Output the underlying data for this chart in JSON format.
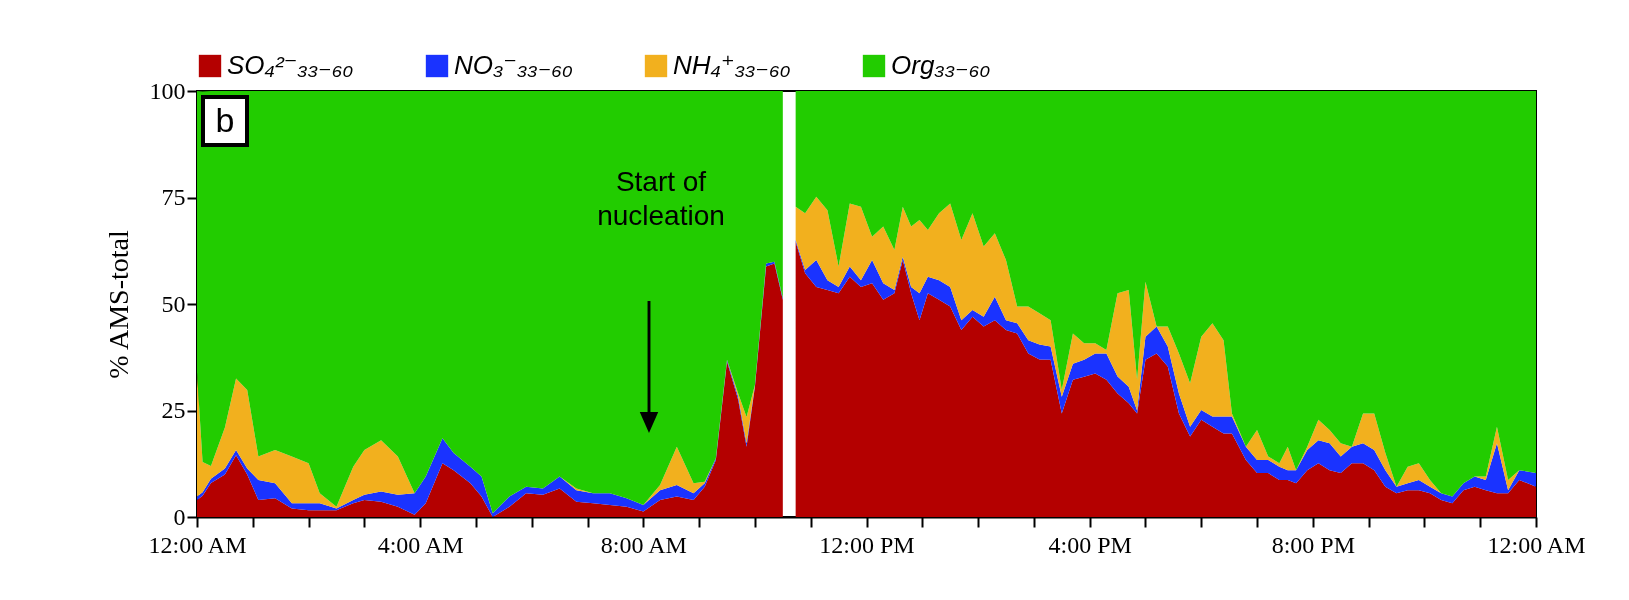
{
  "chart_data": {
    "type": "area",
    "stacked": true,
    "ylabel": "% AMS-total",
    "legend": "top",
    "grid": false,
    "annotations": [
      "b",
      "Start of nucleation"
    ],
    "ylim": [
      0,
      100
    ],
    "yticks": [
      0,
      25,
      50,
      75,
      100
    ],
    "xlim": [
      0,
      24
    ],
    "xticks": [
      {
        "value": 0,
        "label": "12:00 AM"
      },
      {
        "value": 1,
        "label": null
      },
      {
        "value": 2,
        "label": null
      },
      {
        "value": 3,
        "label": null
      },
      {
        "value": 4,
        "label": "4:00 AM"
      },
      {
        "value": 5,
        "label": null
      },
      {
        "value": 6,
        "label": null
      },
      {
        "value": 7,
        "label": null
      },
      {
        "value": 8,
        "label": "8:00 AM"
      },
      {
        "value": 9,
        "label": null
      },
      {
        "value": 10,
        "label": null
      },
      {
        "value": 11,
        "label": null
      },
      {
        "value": 12,
        "label": "12:00 PM"
      },
      {
        "value": 13,
        "label": null
      },
      {
        "value": 14,
        "label": null
      },
      {
        "value": 15,
        "label": null
      },
      {
        "value": 16,
        "label": "4:00 PM"
      },
      {
        "value": 17,
        "label": null
      },
      {
        "value": 18,
        "label": null
      },
      {
        "value": 19,
        "label": null
      },
      {
        "value": 20,
        "label": "8:00 PM"
      },
      {
        "value": 21,
        "label": null
      },
      {
        "value": 22,
        "label": null
      },
      {
        "value": 23,
        "label": null
      },
      {
        "value": 24,
        "label": "12:00 AM"
      }
    ],
    "x": [
      0,
      0.1,
      0.25,
      0.5,
      0.7,
      0.9,
      1.1,
      1.4,
      1.7,
      2.0,
      2.2,
      2.5,
      2.8,
      3.0,
      3.3,
      3.6,
      3.9,
      4.1,
      4.4,
      4.6,
      4.9,
      5.1,
      5.3,
      5.6,
      5.9,
      6.2,
      6.5,
      6.8,
      7.1,
      7.4,
      7.7,
      8.0,
      8.3,
      8.6,
      8.9,
      9.1,
      9.3,
      9.5,
      9.7,
      9.85,
      10.0,
      10.2,
      10.35,
      10.5,
      10.6,
      10.73,
      10.9,
      11.1,
      11.3,
      11.5,
      11.7,
      11.9,
      12.1,
      12.3,
      12.5,
      12.65,
      12.8,
      12.95,
      13.1,
      13.3,
      13.5,
      13.7,
      13.9,
      14.1,
      14.3,
      14.5,
      14.7,
      14.9,
      15.1,
      15.3,
      15.5,
      15.7,
      15.9,
      16.1,
      16.3,
      16.5,
      16.7,
      16.85,
      17.0,
      17.2,
      17.4,
      17.6,
      17.8,
      18.0,
      18.2,
      18.4,
      18.55,
      18.8,
      19.0,
      19.2,
      19.4,
      19.55,
      19.7,
      19.9,
      20.1,
      20.3,
      20.5,
      20.7,
      20.9,
      21.1,
      21.3,
      21.5,
      21.7,
      21.9,
      22.1,
      22.3,
      22.5,
      22.7,
      22.9,
      23.1,
      23.3,
      23.5,
      23.7,
      24
    ],
    "series": [
      {
        "name": "SO₄²⁻₃₃₋₆₀",
        "color": "#b40000",
        "values": [
          4,
          5,
          8,
          10,
          14.5,
          10,
          4,
          4.4,
          2,
          1.6,
          1.6,
          1.6,
          3.2,
          4,
          3.6,
          2.4,
          0.5,
          3.2,
          12.6,
          11,
          7.9,
          4.8,
          0,
          2.4,
          5.6,
          5.2,
          6.7,
          3.6,
          3.2,
          2.8,
          2.4,
          1.3,
          4,
          4.8,
          4,
          7.1,
          13.4,
          36.5,
          27.5,
          16.5,
          30.6,
          58.8,
          59.5,
          51,
          null,
          64.6,
          57.2,
          54,
          53.3,
          52.5,
          56.4,
          54,
          54.9,
          51,
          52.5,
          60.3,
          52.5,
          46.2,
          52.5,
          51,
          49.4,
          43.9,
          47,
          44.7,
          46.2,
          43.9,
          43.1,
          38.4,
          37,
          36.9,
          24.3,
          32.2,
          32.9,
          33.7,
          32.2,
          29,
          26.7,
          24.3,
          36.9,
          38.4,
          35.3,
          24.3,
          18.9,
          22.8,
          21.2,
          19.6,
          19.6,
          13.4,
          10.3,
          10.3,
          8.7,
          8.7,
          7.9,
          11,
          12.6,
          11,
          10.3,
          12.6,
          12.6,
          11,
          7.1,
          5.6,
          6.3,
          6.3,
          5.6,
          4,
          3.2,
          6.3,
          7.1,
          6.3,
          5.6,
          5.6,
          8.7,
          7.1
        ]
      },
      {
        "name": "NO₃⁻₃₃₋₆₀",
        "color": "#1a33ff",
        "values": [
          0.8,
          0.8,
          1,
          1.4,
          1.2,
          1.4,
          4.7,
          3.5,
          1.2,
          1.6,
          1.6,
          0.4,
          0.8,
          1.2,
          2.4,
          2.8,
          5.1,
          6.3,
          5.9,
          4,
          3.9,
          4.7,
          0.9,
          2.4,
          1.5,
          1.5,
          2.8,
          2.7,
          2.4,
          2.8,
          2,
          1.5,
          2.3,
          2.7,
          1.6,
          0.8,
          0.4,
          0.4,
          0.7,
          0.8,
          0.4,
          0.7,
          0.4,
          0.4,
          null,
          0.4,
          0.8,
          6.3,
          2.3,
          1.5,
          2.4,
          1.6,
          5.4,
          3.9,
          0.8,
          0.8,
          1.5,
          6.3,
          3.9,
          4.6,
          4.6,
          2.3,
          1.6,
          2.3,
          5.5,
          2.3,
          2.4,
          3.1,
          3.5,
          3.1,
          3.9,
          3.8,
          4,
          4.7,
          6.2,
          4,
          3.9,
          0.7,
          5.4,
          6.3,
          4.7,
          4.7,
          2.3,
          2.3,
          2.4,
          4,
          4,
          3.1,
          3.1,
          3.1,
          3.1,
          2.3,
          3.1,
          4.7,
          5.4,
          6.3,
          3.9,
          3.9,
          4.7,
          4.7,
          3.9,
          1.5,
          1.6,
          2.4,
          1.5,
          1.6,
          1.6,
          1.6,
          2.4,
          2.4,
          11.7,
          0.7,
          2.3,
          3.2
        ]
      },
      {
        "name": "NH₄⁺₃₃₋₆₀",
        "color": "#f2b01e",
        "values": [
          29.2,
          7.1,
          3,
          9.6,
          16.8,
          18.4,
          5.5,
          7.8,
          11,
          9.4,
          2.4,
          0.4,
          7.8,
          10.5,
          12,
          9,
          0,
          0,
          0,
          0,
          0,
          0,
          0,
          0,
          0,
          0,
          0,
          0.4,
          0,
          0,
          0,
          0,
          1.2,
          9,
          2.3,
          0.4,
          0,
          0,
          0.8,
          6.2,
          0,
          0,
          0,
          0,
          null,
          7.8,
          13.3,
          14.9,
          16.4,
          4.8,
          14.8,
          17.2,
          5.5,
          13.3,
          9.4,
          11.7,
          14.2,
          17.2,
          11,
          15.7,
          19.6,
          18.8,
          22.7,
          16.5,
          14.9,
          14.1,
          3.9,
          7.9,
          7.3,
          6.2,
          1.6,
          7.1,
          3.9,
          2.4,
          0.8,
          19.5,
          22.7,
          7.2,
          12.9,
          0,
          4.7,
          9.4,
          10.2,
          17.2,
          21.9,
          17.9,
          0.7,
          0,
          7,
          0.8,
          0.8,
          5.5,
          0,
          0.8,
          4.8,
          3.1,
          3.1,
          0,
          7,
          8.6,
          4,
          0,
          3.9,
          3.9,
          1.6,
          0,
          0,
          0,
          0,
          0.8,
          3.9,
          2.4,
          0,
          0
        ]
      },
      {
        "name": "Org₃₃₋₆₀",
        "color": "#22cc00",
        "values": [
          66,
          87,
          88,
          79,
          67.5,
          70.2,
          85.8,
          84.3,
          85.8,
          87.4,
          94.4,
          97.6,
          88.2,
          84.3,
          82,
          85.8,
          94.4,
          90.5,
          81.5,
          85,
          88.2,
          90.5,
          99.1,
          95.2,
          92.9,
          93.3,
          90.5,
          93.3,
          94.4,
          94.4,
          95.6,
          97.2,
          92.5,
          83.5,
          92.1,
          91.7,
          86.2,
          63.1,
          71,
          76.5,
          69,
          40.5,
          40.1,
          48.6,
          null,
          27.2,
          28.7,
          24.8,
          28,
          41.2,
          26.4,
          27.2,
          34.2,
          31.8,
          37.3,
          27.2,
          31.8,
          30.3,
          32.6,
          28.7,
          26.4,
          35,
          28.7,
          36.5,
          33.4,
          39.7,
          50.6,
          50.6,
          52.2,
          53.8,
          70.2,
          56.9,
          59.2,
          59.2,
          60.8,
          47.5,
          46.7,
          67.8,
          44.8,
          55.3,
          55.3,
          61.6,
          68.6,
          57.7,
          54.5,
          58.5,
          75.7,
          83.5,
          79.6,
          85.8,
          87.4,
          83.5,
          89,
          83.5,
          77.2,
          79.6,
          82.7,
          83.5,
          75.7,
          75.7,
          85,
          92.9,
          88.2,
          87.4,
          91.3,
          94.4,
          95.2,
          92.1,
          90.5,
          90.5,
          78.8,
          91.3,
          89,
          89.7
        ]
      }
    ]
  }
}
